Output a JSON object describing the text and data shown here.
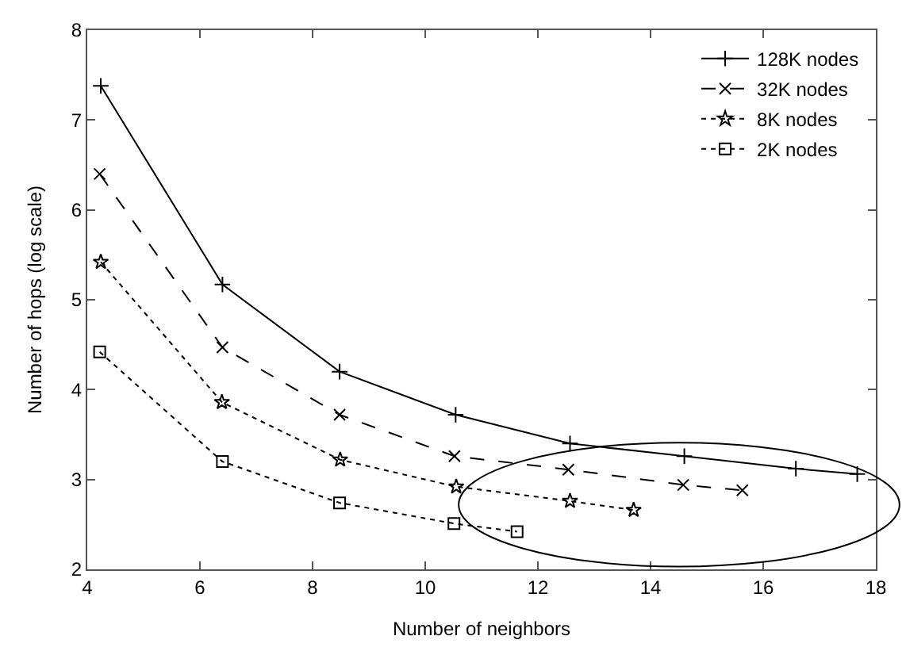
{
  "chart_data": {
    "type": "line",
    "xlabel": "Number of neighbors",
    "ylabel": "Number of hops (log scale)",
    "xlim": [
      4,
      18
    ],
    "xticks": [
      4,
      6,
      8,
      10,
      12,
      14,
      16,
      18
    ],
    "ylim": [
      2,
      8
    ],
    "yticks": [
      2,
      3,
      4,
      5,
      6,
      7,
      8
    ],
    "grid": false,
    "legend": "top right",
    "series": [
      {
        "name": "128K nodes",
        "color": "#000000",
        "marker": "cross",
        "line_style": "solid",
        "x": [
          4.24,
          6.4,
          8.48,
          10.54,
          12.57,
          14.6,
          16.58,
          17.67
        ],
        "values": [
          7.38,
          5.17,
          4.2,
          3.72,
          3.4,
          3.26,
          3.12,
          3.06
        ]
      },
      {
        "name": "32K nodes",
        "color": "#000000",
        "marker": "x",
        "line_style": "dashed",
        "x": [
          4.22,
          6.4,
          8.48,
          10.52,
          12.54,
          14.58,
          15.63
        ],
        "values": [
          6.4,
          4.47,
          3.72,
          3.26,
          3.11,
          2.94,
          2.88
        ]
      },
      {
        "name": "8K nodes",
        "color": "#000000",
        "marker": "star",
        "line_style": "dotted",
        "x": [
          4.24,
          6.39,
          8.49,
          10.55,
          12.57,
          13.7
        ],
        "values": [
          5.42,
          3.86,
          3.22,
          2.92,
          2.76,
          2.66
        ]
      },
      {
        "name": "2K nodes",
        "color": "#000000",
        "marker": "square",
        "line_style": "dotted",
        "x": [
          4.22,
          6.4,
          8.48,
          10.51,
          11.63
        ],
        "values": [
          4.42,
          3.2,
          2.74,
          2.51,
          2.42
        ]
      }
    ]
  }
}
